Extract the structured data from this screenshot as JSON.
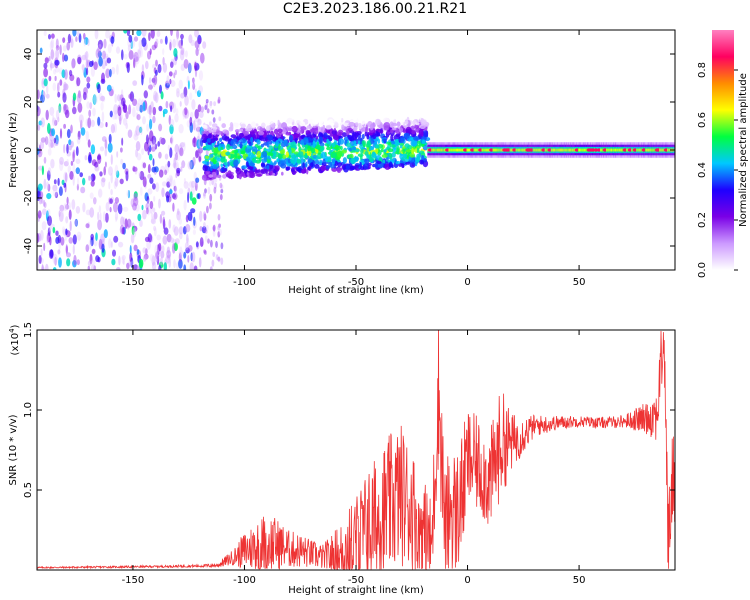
{
  "page": {
    "title": "C2E3.2023.186.00.21.R21"
  },
  "chart_data": [
    {
      "type": "heatmap",
      "title": "C2E3.2023.186.00.21.R21",
      "xlabel": "Height of straight line (km)",
      "ylabel": "Frequency (Hz)",
      "xlim": [
        -193,
        93
      ],
      "ylim": [
        -50,
        50
      ],
      "xticks": [
        -150,
        -100,
        -50,
        0,
        50
      ],
      "yticks": [
        -40,
        -20,
        0,
        20,
        40
      ],
      "grid": false,
      "colorbar": {
        "label": "Normalized spectral amplitude",
        "range": [
          0,
          0.96
        ],
        "ticks": [
          "0.0",
          "0.2",
          "0.4",
          "0.6",
          "0.8"
        ],
        "colors": [
          "#ffffff",
          "#cc99ff",
          "#7a00e6",
          "#1e00ff",
          "#00c8ff",
          "#00ff40",
          "#ffff00",
          "#ff8c00",
          "#ff0060",
          "#ff80c0"
        ]
      },
      "regions": [
        {
          "name": "noise",
          "x": [
            -193,
            -118
          ],
          "freq": [
            -50,
            50
          ],
          "amplitude": 0.2
        },
        {
          "name": "noise-tail",
          "x": [
            -118,
            -110
          ],
          "freq": [
            -50,
            22
          ],
          "amplitude": 0.12
        },
        {
          "name": "broad-band",
          "x": [
            -118,
            -18
          ],
          "freq": [
            -12,
            10
          ],
          "amplitude": 0.3
        },
        {
          "name": "narrow-band",
          "x": [
            -18,
            93
          ],
          "freq": [
            -3,
            3
          ],
          "amplitude": 0.7
        }
      ]
    },
    {
      "type": "line",
      "xlabel": "Height of straight line (km)",
      "ylabel": "SNR (10 * v/v)",
      "yscale_label": "(x10",
      "yscale_exp": "4",
      "yscale_close": ")",
      "xlim": [
        -193,
        93
      ],
      "ylim": [
        0,
        15000
      ],
      "xticks": [
        -150,
        -100,
        -50,
        0,
        50
      ],
      "yticks": [
        5000,
        10000,
        15000
      ],
      "ytick_labels": [
        "0.5",
        "1.0",
        "1.5"
      ],
      "grid": false,
      "series": [
        {
          "color": "#ee3333",
          "x": [
            -193,
            -150,
            -120,
            -112,
            -105,
            -100,
            -95,
            -90,
            -85,
            -80,
            -75,
            -70,
            -65,
            -60,
            -55,
            -50,
            -45,
            -40,
            -35,
            -30,
            -25,
            -20,
            -16,
            -13,
            -10,
            -8,
            -5,
            -2,
            0,
            5,
            10,
            15,
            20,
            25,
            30,
            40,
            50,
            60,
            70,
            80,
            85,
            88,
            90,
            92
          ],
          "y": [
            150,
            200,
            250,
            300,
            800,
            1200,
            1500,
            1700,
            1600,
            1300,
            1200,
            1000,
            800,
            900,
            1200,
            1800,
            2500,
            3200,
            4000,
            4800,
            3800,
            2600,
            1500,
            11500,
            2000,
            4000,
            3500,
            5000,
            7000,
            6500,
            5500,
            8000,
            8000,
            8500,
            9000,
            9200,
            9300,
            9200,
            9300,
            9500,
            9800,
            15000,
            1500,
            6000
          ],
          "band": [
            50,
            60,
            80,
            150,
            500,
            1200,
            1600,
            2000,
            1600,
            1200,
            1100,
            900,
            800,
            1500,
            2200,
            3000,
            3800,
            4200,
            4500,
            4500,
            4000,
            3200,
            3000,
            5000,
            4000,
            4200,
            4000,
            3800,
            3200,
            3000,
            3200,
            3500,
            1800,
            1200,
            700,
            450,
            350,
            350,
            400,
            1000,
            1800,
            2500,
            3000,
            3000
          ]
        }
      ]
    }
  ]
}
